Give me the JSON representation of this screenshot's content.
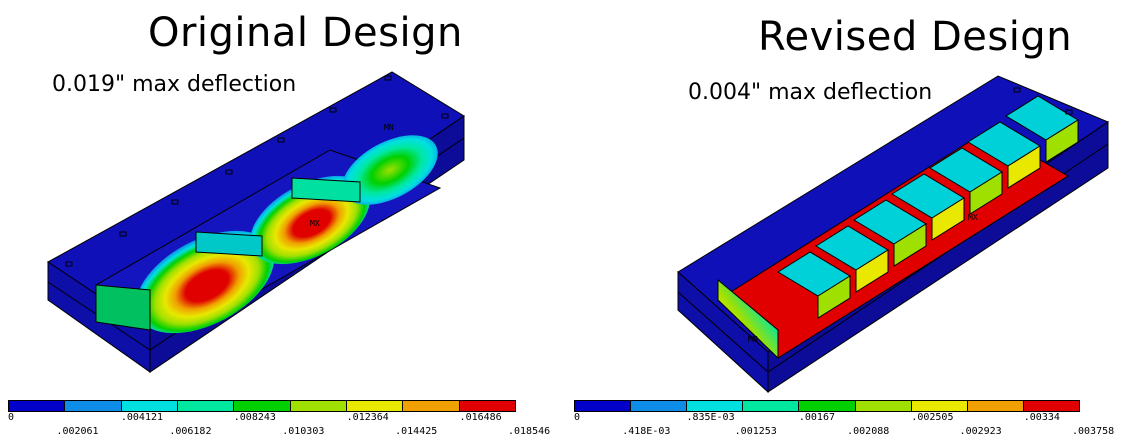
{
  "left": {
    "title": "Original Design",
    "subtitle": "0.019\" max deflection",
    "legend_colors": [
      "#0000c8",
      "#0d8de8",
      "#00e0e0",
      "#00e8a0",
      "#00d000",
      "#a0e000",
      "#e8e800",
      "#f0a000",
      "#e00000"
    ],
    "ticks_top": [
      "0",
      ".004121",
      ".008243",
      ".012364",
      ".016486"
    ],
    "ticks_bottom": [
      ".002061",
      ".006182",
      ".010303",
      ".014425",
      ".018546"
    ],
    "mx_label": "MX",
    "mn_label": "MN"
  },
  "right": {
    "title": "Revised Design",
    "subtitle": "0.004\" max deflection",
    "legend_colors": [
      "#0000c8",
      "#0d8de8",
      "#00e0e0",
      "#00e8a0",
      "#00d000",
      "#a0e000",
      "#e8e800",
      "#f0a000",
      "#e00000"
    ],
    "ticks_top": [
      "0",
      ".835E-03",
      ".00167",
      ".002505",
      ".00334"
    ],
    "ticks_bottom": [
      ".418E-03",
      ".001253",
      ".002088",
      ".002923",
      ".003758"
    ],
    "mx_label": "MX",
    "mn_label": "MN"
  },
  "colors": {
    "base_blue": "#1010b8",
    "dark_blue": "#0a0a80",
    "edge": "#000000"
  }
}
